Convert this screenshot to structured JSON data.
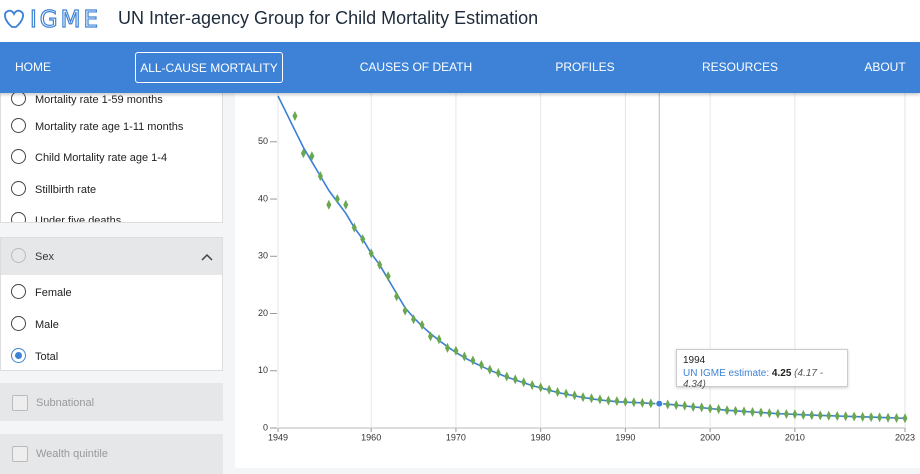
{
  "header": {
    "logo": "IGME",
    "title": "UN Inter-agency Group for Child Mortality Estimation"
  },
  "nav": {
    "items": [
      "HOME",
      "ALL-CAUSE MORTALITY",
      "CAUSES OF DEATH",
      "PROFILES",
      "RESOURCES",
      "ABOUT"
    ],
    "active": 1
  },
  "sidebar": {
    "indicators": [
      "Mortality rate 1-59 months",
      "Mortality rate age 1-11 months",
      "Child Mortality rate age 1-4",
      "Stillbirth rate",
      "Under five deaths"
    ],
    "sex": {
      "title": "Sex",
      "options": [
        "Female",
        "Male",
        "Total"
      ],
      "selected": 2
    },
    "filters": [
      "Subnational",
      "Wealth quintile"
    ]
  },
  "chart_data": {
    "type": "line",
    "xlim": [
      1949,
      2023
    ],
    "xticks": [
      1949,
      1960,
      1970,
      1980,
      1990,
      2000,
      2010,
      2023
    ],
    "ylim": [
      0,
      58
    ],
    "yticks": [
      0,
      10,
      20,
      30,
      40,
      50
    ],
    "grid": true,
    "series": [
      {
        "color": "#3a7fd5",
        "style": "line",
        "x": [
          1949,
          1950,
          1951,
          1952,
          1953,
          1954,
          1955,
          1956,
          1957,
          1958,
          1959,
          1960,
          1961,
          1962,
          1963,
          1964,
          1965,
          1966,
          1967,
          1968,
          1969,
          1970,
          1971,
          1972,
          1973,
          1974,
          1975,
          1976,
          1977,
          1978,
          1979,
          1980,
          1981,
          1982,
          1983,
          1984,
          1985,
          1986,
          1987,
          1988,
          1989,
          1990,
          1991,
          1992,
          1993,
          1994,
          1995,
          1996,
          1997,
          1998,
          1999,
          2000,
          2001,
          2002,
          2003,
          2004,
          2005,
          2006,
          2007,
          2008,
          2009,
          2010,
          2011,
          2012,
          2013,
          2014,
          2015,
          2016,
          2017,
          2018,
          2019,
          2020,
          2021,
          2022,
          2023
        ],
        "values": [
          58,
          55,
          52,
          49,
          46.5,
          44,
          41.5,
          39.5,
          37.5,
          35,
          33,
          30.5,
          28.5,
          26,
          23.5,
          21,
          19.3,
          17.8,
          16.5,
          15.3,
          14.2,
          13.2,
          12.3,
          11.5,
          10.8,
          10.1,
          9.5,
          8.9,
          8.4,
          7.9,
          7.4,
          7.0,
          6.6,
          6.2,
          5.9,
          5.6,
          5.35,
          5.1,
          4.9,
          4.75,
          4.6,
          4.5,
          4.45,
          4.4,
          4.3,
          4.25,
          4.15,
          4.0,
          3.85,
          3.7,
          3.55,
          3.4,
          3.25,
          3.1,
          3.0,
          2.9,
          2.8,
          2.7,
          2.6,
          2.5,
          2.45,
          2.4,
          2.3,
          2.25,
          2.2,
          2.15,
          2.1,
          2.05,
          2.0,
          1.95,
          1.9,
          1.85,
          1.8,
          1.75,
          1.7
        ]
      },
      {
        "color": "#6aa84f",
        "style": "diamond",
        "x": [
          1951,
          1952,
          1953,
          1954,
          1955,
          1956,
          1957,
          1958,
          1959,
          1960,
          1961,
          1962,
          1963,
          1964,
          1965,
          1966,
          1967,
          1968,
          1969,
          1970,
          1971,
          1972,
          1973,
          1974,
          1975,
          1976,
          1977,
          1978,
          1979,
          1980,
          1981,
          1982,
          1983,
          1984,
          1985,
          1986,
          1987,
          1988,
          1989,
          1990,
          1991,
          1992,
          1993,
          1994,
          1995,
          1996,
          1997,
          1998,
          1999,
          2000,
          2001,
          2002,
          2003,
          2004,
          2005,
          2006,
          2007,
          2008,
          2009,
          2010,
          2011,
          2012,
          2013,
          2014,
          2015,
          2016,
          2017,
          2018,
          2019,
          2020,
          2021,
          2022,
          2023
        ],
        "values": [
          54.5,
          48,
          47.5,
          44,
          39,
          40,
          39,
          35,
          33,
          30.5,
          28.5,
          26.5,
          23,
          20.5,
          19,
          18,
          16,
          15.5,
          14,
          13.5,
          12.5,
          11.8,
          11,
          10.2,
          9.6,
          9,
          8.5,
          8,
          7.5,
          7.1,
          6.7,
          6.3,
          6,
          5.7,
          5.4,
          5.2,
          5,
          4.8,
          4.7,
          4.6,
          4.5,
          4.4,
          4.3,
          4.25,
          4.1,
          4,
          3.9,
          3.7,
          3.6,
          3.4,
          3.3,
          3.1,
          3,
          2.9,
          2.8,
          2.7,
          2.6,
          2.5,
          2.45,
          2.4,
          2.3,
          2.25,
          2.2,
          2.15,
          2.1,
          2.05,
          2,
          1.95,
          1.9,
          1.85,
          1.8,
          1.75,
          1.7
        ]
      }
    ],
    "tooltip": {
      "x": 1994,
      "label": "UN IGME estimate:",
      "value": 4.25,
      "range": "(4.17 - 4.34)"
    }
  }
}
